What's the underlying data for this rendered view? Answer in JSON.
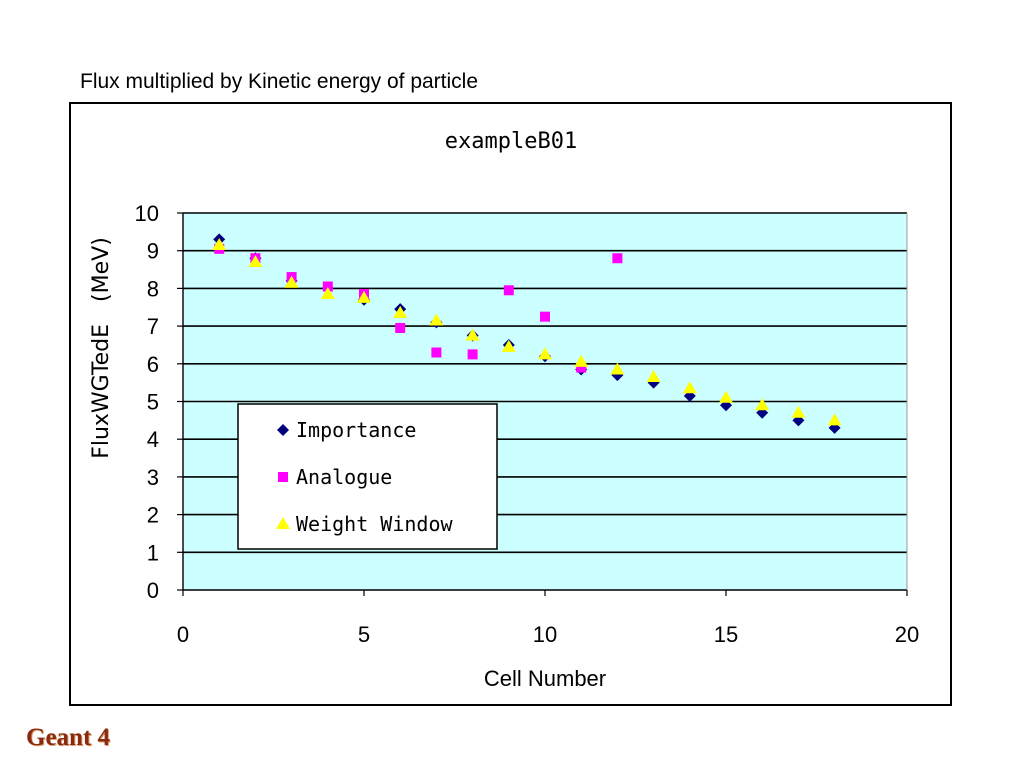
{
  "slide": {
    "title": "Flux multiplied by Kinetic energy of particle",
    "footer": "Geant 4"
  },
  "colors": {
    "plot_background": "#ccffff",
    "importance": "#000080",
    "analogue": "#ff00ff",
    "weight_window": "#ffff00"
  },
  "chart_data": {
    "type": "scatter",
    "title": "exampleB01",
    "xlabel": "Cell Number",
    "ylabel": "FluxWGTedE　(MeV)",
    "xlim": [
      0,
      20
    ],
    "ylim": [
      0,
      10
    ],
    "x_ticks": [
      "0",
      "5",
      "10",
      "15",
      "20"
    ],
    "y_ticks": [
      "0",
      "1",
      "2",
      "3",
      "4",
      "5",
      "6",
      "7",
      "8",
      "9",
      "10"
    ],
    "grid": "horizontal",
    "legend_position": "lower-left inside plot",
    "series": [
      {
        "name": "Importance",
        "marker": "diamond",
        "color": "#000080",
        "points": [
          [
            1,
            9.3
          ],
          [
            2,
            8.8
          ],
          [
            3,
            8.2
          ],
          [
            4,
            8.0
          ],
          [
            5,
            7.7
          ],
          [
            6,
            7.45
          ],
          [
            7,
            7.1
          ],
          [
            8,
            6.75
          ],
          [
            9,
            6.5
          ],
          [
            10,
            6.2
          ],
          [
            11,
            5.85
          ],
          [
            12,
            5.7
          ],
          [
            13,
            5.5
          ],
          [
            14,
            5.15
          ],
          [
            15,
            4.9
          ],
          [
            16,
            4.7
          ],
          [
            17,
            4.5
          ],
          [
            18,
            4.3
          ]
        ]
      },
      {
        "name": "Analogue",
        "marker": "square",
        "color": "#ff00ff",
        "points": [
          [
            1,
            9.05
          ],
          [
            2,
            8.8
          ],
          [
            3,
            8.3
          ],
          [
            4,
            8.05
          ],
          [
            5,
            7.85
          ],
          [
            6,
            6.95
          ],
          [
            7,
            6.3
          ],
          [
            8,
            6.25
          ],
          [
            9,
            7.95
          ],
          [
            10,
            7.25
          ],
          [
            11,
            5.9
          ],
          [
            12,
            8.8
          ]
        ]
      },
      {
        "name": "Weight Window",
        "marker": "triangle",
        "color": "#ffff00",
        "points": [
          [
            1,
            9.15
          ],
          [
            2,
            8.7
          ],
          [
            3,
            8.15
          ],
          [
            4,
            7.85
          ],
          [
            5,
            7.75
          ],
          [
            6,
            7.35
          ],
          [
            7,
            7.15
          ],
          [
            8,
            6.75
          ],
          [
            9,
            6.45
          ],
          [
            10,
            6.25
          ],
          [
            11,
            6.05
          ],
          [
            12,
            5.85
          ],
          [
            13,
            5.65
          ],
          [
            14,
            5.35
          ],
          [
            15,
            5.1
          ],
          [
            16,
            4.9
          ],
          [
            17,
            4.7
          ],
          [
            18,
            4.5
          ]
        ]
      }
    ]
  }
}
